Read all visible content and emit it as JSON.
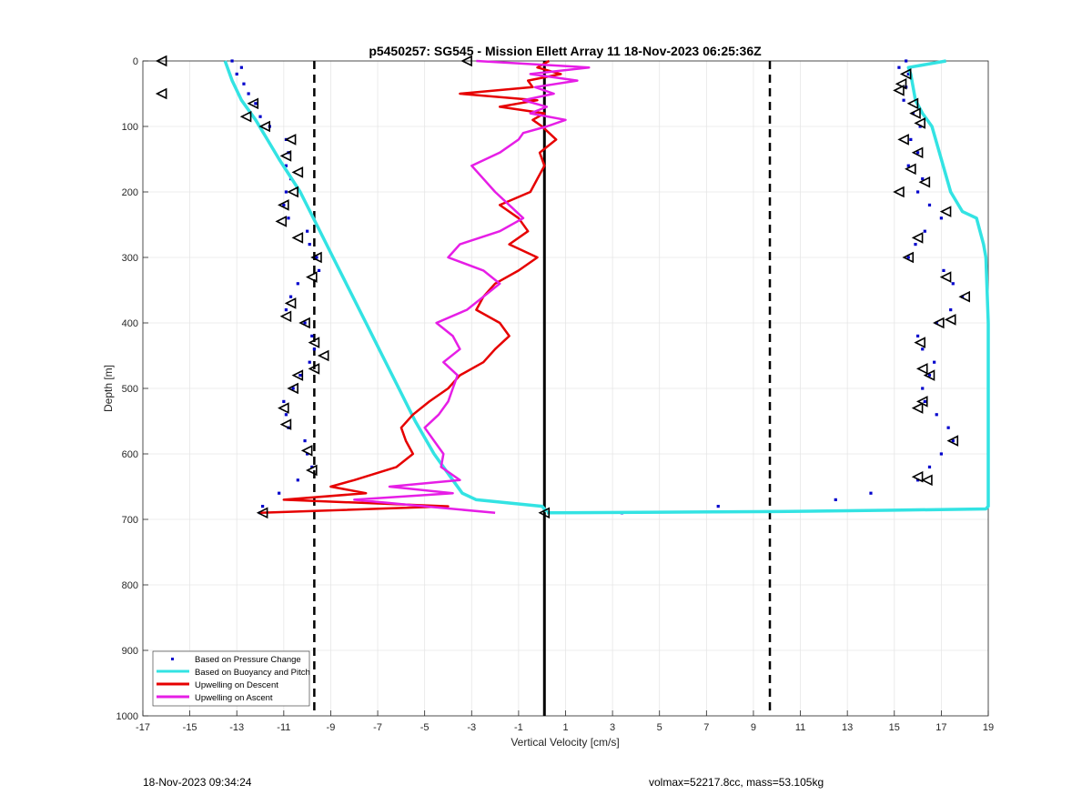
{
  "chart_data": {
    "type": "scatter",
    "title": "p5450257: SG545 - Mission Ellett Array 11 18-Nov-2023 06:25:36Z",
    "xlabel": "Vertical Velocity [cm/s]",
    "ylabel": "Depth [m]",
    "xlim": [
      -17,
      19
    ],
    "ylim": [
      0,
      1000
    ],
    "y_reversed": true,
    "grid": true,
    "x_ticks": [
      -17,
      -15,
      -13,
      -11,
      -9,
      -7,
      -5,
      -3,
      -1,
      1,
      3,
      5,
      7,
      9,
      11,
      13,
      15,
      17,
      19
    ],
    "y_ticks": [
      0,
      100,
      200,
      300,
      400,
      500,
      600,
      700,
      800,
      900,
      1000
    ],
    "legend_position": "bottom-left",
    "reference_lines": [
      {
        "type": "vertical",
        "x": 0.1,
        "style": "solid"
      },
      {
        "type": "vertical",
        "x": -9.7,
        "style": "dashed"
      },
      {
        "type": "vertical",
        "x": 9.7,
        "style": "dashed"
      }
    ],
    "series": [
      {
        "name": "Based on Pressure Change",
        "style": "dots",
        "color": "#0000cc",
        "descent": {
          "depth": [
            0,
            10,
            20,
            35,
            50,
            65,
            85,
            100,
            120,
            140,
            160,
            180,
            200,
            220,
            240,
            260,
            280,
            300,
            320,
            340,
            360,
            380,
            400,
            420,
            440,
            460,
            480,
            500,
            520,
            540,
            560,
            580,
            600,
            620,
            640,
            660,
            680,
            690
          ],
          "v": [
            -13.2,
            -12.8,
            -13.0,
            -12.7,
            -12.5,
            -12.2,
            -12.0,
            -11.6,
            -10.9,
            -10.8,
            -10.9,
            -10.7,
            -10.9,
            -11.0,
            -10.8,
            -10.0,
            -9.9,
            -9.6,
            -9.5,
            -10.4,
            -10.7,
            -10.9,
            -10.1,
            -9.8,
            -9.7,
            -9.9,
            -10.3,
            -10.6,
            -11.0,
            -10.9,
            -10.8,
            -10.1,
            -10.0,
            -9.8,
            -10.4,
            -11.2,
            -11.9,
            -12.0
          ]
        },
        "ascent": {
          "depth": [
            690,
            680,
            670,
            660,
            640,
            620,
            600,
            580,
            560,
            540,
            520,
            500,
            480,
            460,
            440,
            420,
            400,
            380,
            360,
            340,
            320,
            300,
            280,
            260,
            240,
            220,
            200,
            180,
            160,
            140,
            120,
            100,
            80,
            60,
            40,
            20,
            10,
            0
          ],
          "v": [
            3.4,
            7.5,
            12.5,
            14.0,
            16.0,
            16.5,
            17.0,
            17.5,
            17.3,
            16.8,
            16.3,
            16.2,
            16.5,
            16.7,
            16.2,
            16.0,
            16.8,
            17.4,
            17.9,
            17.5,
            17.1,
            15.6,
            15.9,
            16.3,
            17.0,
            16.5,
            16.0,
            16.2,
            15.6,
            16.0,
            15.7,
            16.1,
            15.8,
            15.4,
            15.5,
            15.6,
            15.2,
            15.5
          ]
        }
      },
      {
        "name": "Based on Buoyancy and Pitch",
        "style": "line",
        "color": "#33e3e3",
        "descent": {
          "depth": [
            0,
            10,
            30,
            60,
            90,
            120,
            150,
            200,
            250,
            300,
            350,
            400,
            450,
            500,
            550,
            600,
            640,
            660,
            670,
            680,
            688
          ],
          "v": [
            -13.5,
            -13.4,
            -13.2,
            -12.8,
            -12.2,
            -11.7,
            -11.2,
            -10.3,
            -9.6,
            -8.9,
            -8.2,
            -7.5,
            -6.8,
            -6.1,
            -5.4,
            -4.6,
            -3.8,
            -3.4,
            -2.8,
            0.0,
            0.2
          ]
        },
        "ascent": {
          "depth": [
            690,
            689,
            688,
            686,
            684,
            680,
            600,
            500,
            400,
            300,
            280,
            240,
            230,
            200,
            150,
            100,
            80,
            60,
            40,
            20,
            10,
            0
          ],
          "v": [
            0.2,
            5.0,
            10.0,
            15.0,
            18.9,
            19.0,
            19.0,
            19.0,
            19.0,
            18.9,
            18.8,
            18.5,
            17.9,
            17.4,
            17.0,
            16.6,
            16.2,
            15.9,
            15.8,
            15.7,
            15.6,
            17.2
          ]
        }
      },
      {
        "name": "Upwelling on Descent",
        "style": "line",
        "color": "#e60000",
        "depth": [
          0,
          10,
          20,
          30,
          40,
          50,
          60,
          70,
          80,
          90,
          100,
          110,
          120,
          140,
          160,
          180,
          200,
          220,
          240,
          260,
          280,
          300,
          320,
          340,
          360,
          380,
          400,
          420,
          440,
          460,
          480,
          500,
          520,
          540,
          560,
          580,
          600,
          620,
          640,
          650,
          660,
          670,
          680,
          690
        ],
        "v": [
          0.3,
          -0.2,
          0.8,
          -0.6,
          -0.4,
          -3.5,
          -0.2,
          -1.8,
          0.1,
          -0.4,
          0.0,
          0.3,
          0.6,
          -0.1,
          0.1,
          -0.2,
          -0.5,
          -1.8,
          -1.0,
          -0.6,
          -1.4,
          -0.2,
          -1.0,
          -2.0,
          -2.5,
          -2.8,
          -1.8,
          -1.4,
          -2.0,
          -2.5,
          -3.5,
          -4.0,
          -4.8,
          -5.5,
          -6.0,
          -5.8,
          -5.5,
          -6.2,
          -8.0,
          -9.0,
          -7.5,
          -11.0,
          -4.0,
          -12.0
        ]
      },
      {
        "name": "Upwelling on Ascent",
        "style": "line",
        "color": "#e61ee6",
        "depth": [
          0,
          10,
          20,
          30,
          40,
          50,
          60,
          70,
          80,
          90,
          100,
          110,
          120,
          140,
          160,
          180,
          200,
          220,
          240,
          260,
          280,
          300,
          320,
          340,
          360,
          380,
          400,
          420,
          440,
          460,
          480,
          500,
          520,
          540,
          560,
          580,
          600,
          620,
          640,
          650,
          660,
          670,
          680,
          690
        ],
        "v": [
          -2.8,
          2.0,
          -0.5,
          1.5,
          -0.3,
          0.5,
          -0.8,
          0.2,
          -0.5,
          1.0,
          0.2,
          -0.8,
          -1.0,
          -1.8,
          -3.0,
          -2.5,
          -2.0,
          -1.4,
          -0.8,
          -1.8,
          -3.5,
          -4.0,
          -2.5,
          -1.8,
          -2.5,
          -3.2,
          -4.5,
          -3.8,
          -3.5,
          -4.2,
          -3.6,
          -3.8,
          -4.0,
          -4.4,
          -5.0,
          -4.6,
          -4.2,
          -4.3,
          -3.5,
          -6.5,
          -3.8,
          -8.0,
          -5.0,
          -2.0
        ]
      }
    ],
    "markers": {
      "style": "open-triangle",
      "color": "#000000",
      "descent": {
        "depth": [
          0,
          50,
          65,
          85,
          100,
          120,
          145,
          170,
          200,
          220,
          245,
          270,
          300,
          330,
          370,
          390,
          400,
          430,
          450,
          470,
          480,
          500,
          530,
          555,
          595,
          625,
          690
        ],
        "v": [
          -16.2,
          -16.2,
          -12.3,
          -12.6,
          -11.8,
          -10.7,
          -10.9,
          -10.4,
          -10.6,
          -11.0,
          -11.1,
          -10.4,
          -9.6,
          -9.8,
          -10.7,
          -10.9,
          -10.1,
          -9.7,
          -9.3,
          -9.7,
          -10.4,
          -10.6,
          -11.0,
          -10.9,
          -10.0,
          -9.8,
          -11.9
        ]
      },
      "ascent": {
        "depth": [
          0,
          20,
          35,
          45,
          65,
          80,
          95,
          120,
          140,
          165,
          185,
          200,
          230,
          270,
          300,
          330,
          360,
          395,
          400,
          430,
          470,
          480,
          520,
          530,
          580,
          635,
          640,
          690
        ],
        "v": [
          -3.2,
          15.5,
          15.3,
          15.2,
          15.8,
          15.9,
          16.1,
          15.4,
          16.0,
          15.7,
          16.3,
          15.2,
          17.2,
          16.0,
          15.6,
          17.2,
          18.0,
          17.4,
          16.9,
          16.1,
          16.2,
          16.5,
          16.2,
          16.0,
          17.5,
          16.0,
          16.4,
          0.1
        ]
      }
    }
  },
  "footer": {
    "left": "18-Nov-2023 09:34:24",
    "right": "volmax=52217.8cc, mass=53.105kg"
  }
}
